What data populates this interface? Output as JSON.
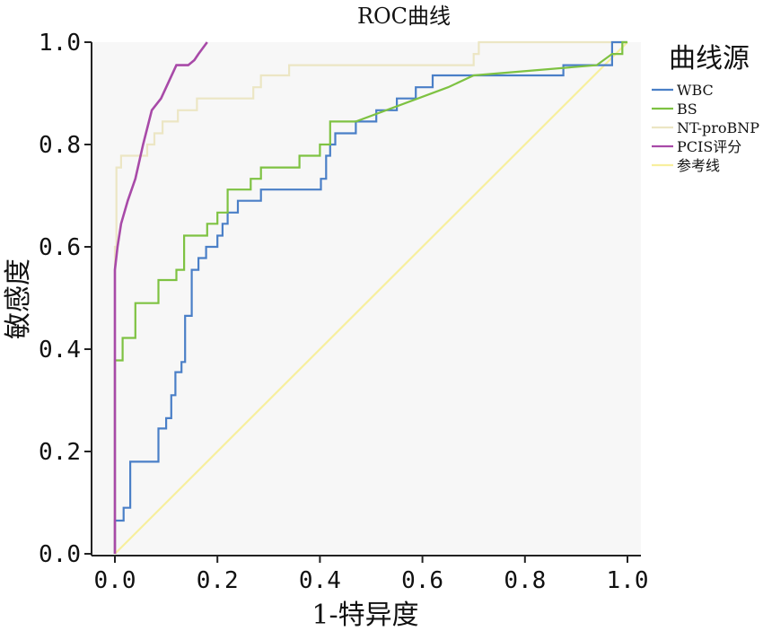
{
  "chart_data": {
    "type": "line",
    "title": "ROC曲线",
    "xlabel": "1-特异度",
    "ylabel": "敏感度",
    "xlim": [
      0,
      1
    ],
    "ylim": [
      0,
      1
    ],
    "x_ticks": [
      "0.0",
      "0.2",
      "0.4",
      "0.6",
      "0.8",
      "1.0"
    ],
    "y_ticks": [
      "0.0",
      "0.2",
      "0.4",
      "0.6",
      "0.8",
      "1.0"
    ],
    "x_tick_values": [
      0,
      0.2,
      0.4,
      0.6,
      0.8,
      1.0
    ],
    "y_tick_values": [
      0,
      0.2,
      0.4,
      0.6,
      0.8,
      1.0
    ],
    "grid": false,
    "legend_title": "曲线源",
    "legend_position": "right",
    "series": [
      {
        "name": "WBC",
        "color": "#4a7fc7",
        "x": [
          0,
          0,
          0.017,
          0.017,
          0.03,
          0.03,
          0.085,
          0.085,
          0.1,
          0.1,
          0.11,
          0.11,
          0.118,
          0.118,
          0.13,
          0.13,
          0.137,
          0.137,
          0.15,
          0.15,
          0.163,
          0.163,
          0.178,
          0.178,
          0.2,
          0.2,
          0.21,
          0.21,
          0.22,
          0.22,
          0.24,
          0.24,
          0.285,
          0.285,
          0.402,
          0.402,
          0.412,
          0.412,
          0.42,
          0.42,
          0.43,
          0.43,
          0.442,
          0.442,
          0.47,
          0.47,
          0.51,
          0.51,
          0.55,
          0.55,
          0.565,
          0.565,
          0.587,
          0.587,
          0.62,
          0.62,
          0.875,
          0.875,
          0.97,
          0.97,
          1.0
        ],
        "y": [
          0,
          0.065,
          0.065,
          0.09,
          0.09,
          0.18,
          0.18,
          0.245,
          0.245,
          0.265,
          0.265,
          0.31,
          0.31,
          0.355,
          0.355,
          0.375,
          0.375,
          0.465,
          0.465,
          0.555,
          0.555,
          0.578,
          0.578,
          0.6,
          0.6,
          0.622,
          0.622,
          0.645,
          0.645,
          0.667,
          0.667,
          0.69,
          0.69,
          0.712,
          0.712,
          0.733,
          0.733,
          0.778,
          0.778,
          0.8,
          0.8,
          0.822,
          0.822,
          0.822,
          0.822,
          0.845,
          0.845,
          0.867,
          0.867,
          0.89,
          0.89,
          0.89,
          0.89,
          0.912,
          0.912,
          0.935,
          0.935,
          0.955,
          0.955,
          1.0,
          1.0
        ]
      },
      {
        "name": "BS",
        "color": "#7ec242",
        "x": [
          0,
          0,
          0.015,
          0.015,
          0.04,
          0.04,
          0.085,
          0.085,
          0.12,
          0.12,
          0.135,
          0.135,
          0.18,
          0.18,
          0.2,
          0.2,
          0.22,
          0.22,
          0.265,
          0.265,
          0.285,
          0.285,
          0.36,
          0.36,
          0.4,
          0.4,
          0.42,
          0.42,
          0.47,
          0.47,
          0.65,
          0.65,
          0.7,
          0.7,
          0.94,
          0.94,
          0.97,
          0.97,
          0.99,
          0.99,
          1.0
        ],
        "y": [
          0,
          0.378,
          0.378,
          0.422,
          0.422,
          0.49,
          0.49,
          0.535,
          0.535,
          0.555,
          0.555,
          0.622,
          0.622,
          0.645,
          0.645,
          0.667,
          0.667,
          0.712,
          0.712,
          0.733,
          0.733,
          0.755,
          0.755,
          0.778,
          0.778,
          0.8,
          0.8,
          0.845,
          0.845,
          0.845,
          0.912,
          0.912,
          0.935,
          0.935,
          0.955,
          0.955,
          0.977,
          0.977,
          0.977,
          1.0,
          1.0
        ]
      },
      {
        "name": "NT-proBNP",
        "color": "#ece6c4",
        "x": [
          0,
          0,
          0.003,
          0.003,
          0.012,
          0.012,
          0.063,
          0.063,
          0.077,
          0.077,
          0.093,
          0.093,
          0.123,
          0.123,
          0.16,
          0.16,
          0.255,
          0.255,
          0.27,
          0.27,
          0.285,
          0.285,
          0.34,
          0.34,
          0.7,
          0.7,
          0.71,
          0.71,
          0.72,
          0.72,
          1.0
        ],
        "y": [
          0,
          0.6,
          0.6,
          0.755,
          0.755,
          0.778,
          0.778,
          0.8,
          0.8,
          0.822,
          0.822,
          0.845,
          0.845,
          0.867,
          0.867,
          0.89,
          0.89,
          0.89,
          0.89,
          0.912,
          0.912,
          0.935,
          0.935,
          0.955,
          0.955,
          0.977,
          0.977,
          1.0,
          1.0,
          1.0,
          1.0
        ]
      },
      {
        "name": "PCIS评分",
        "color": "#a84aa8",
        "x": [
          0,
          0,
          0.005,
          0.012,
          0.025,
          0.04,
          0.055,
          0.072,
          0.09,
          0.12,
          0.143,
          0.155,
          0.163,
          0.18
        ],
        "y": [
          0,
          0.555,
          0.6,
          0.645,
          0.69,
          0.733,
          0.8,
          0.867,
          0.89,
          0.955,
          0.955,
          0.965,
          0.977,
          1.0
        ]
      },
      {
        "name": "参考线",
        "color": "#f7ef9e",
        "x": [
          0,
          1
        ],
        "y": [
          0,
          1
        ]
      }
    ]
  }
}
